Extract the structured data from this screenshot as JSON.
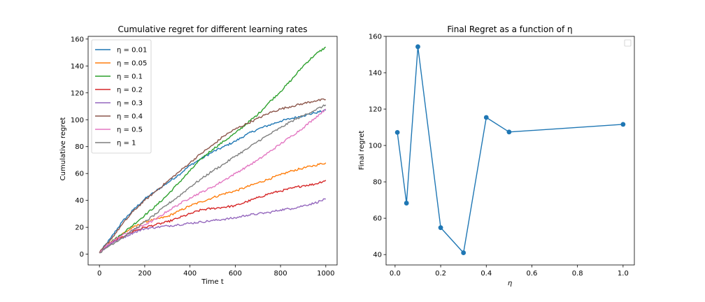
{
  "chart_data": [
    {
      "type": "line",
      "title": "Cumulative regret for different learning rates",
      "xlabel": "Time t",
      "ylabel": "Cumulative regret",
      "xlim": [
        -50,
        1050
      ],
      "ylim": [
        -8,
        162
      ],
      "xticks": [
        0,
        200,
        400,
        600,
        800,
        1000
      ],
      "yticks": [
        0,
        20,
        40,
        60,
        80,
        100,
        120,
        140,
        160
      ],
      "grid": false,
      "legend": "upper-left",
      "x": [
        0,
        50,
        100,
        150,
        200,
        250,
        300,
        350,
        400,
        450,
        500,
        550,
        600,
        650,
        700,
        750,
        800,
        850,
        900,
        950,
        1000
      ],
      "series": [
        {
          "name": "η = 0.01",
          "color": "#1f77b4",
          "values": [
            1,
            12,
            24,
            33,
            41,
            47,
            53,
            59,
            66,
            71,
            76,
            80,
            84,
            89,
            93,
            96,
            99,
            101,
            103,
            105,
            107
          ]
        },
        {
          "name": "η = 0.05",
          "color": "#ff7f0e",
          "values": [
            1,
            9,
            15,
            20,
            24,
            26,
            28,
            32,
            36,
            39,
            42,
            45,
            47,
            50,
            53,
            56,
            59,
            62,
            64,
            66,
            68
          ]
        },
        {
          "name": "η = 0.1",
          "color": "#2ca02c",
          "values": [
            1,
            9,
            15,
            22,
            29,
            36,
            44,
            53,
            62,
            71,
            78,
            84,
            90,
            97,
            104,
            113,
            121,
            130,
            140,
            148,
            154
          ]
        },
        {
          "name": "η = 0.2",
          "color": "#d62728",
          "values": [
            1,
            8,
            13,
            17,
            20,
            22,
            24,
            27,
            30,
            33,
            34,
            35,
            36,
            39,
            42,
            45,
            47,
            49,
            51,
            52,
            55
          ]
        },
        {
          "name": "η = 0.3",
          "color": "#9467bd",
          "values": [
            1,
            8,
            12,
            16,
            19,
            20,
            21,
            22,
            23,
            24,
            25,
            26,
            27,
            29,
            30,
            31,
            33,
            34,
            36,
            38,
            41
          ]
        },
        {
          "name": "η = 0.4",
          "color": "#8c564b",
          "values": [
            1,
            11,
            22,
            32,
            40,
            47,
            54,
            61,
            68,
            75,
            81,
            88,
            93,
            97,
            101,
            105,
            108,
            110,
            112,
            114,
            115
          ]
        },
        {
          "name": "η = 0.5",
          "color": "#e377c2",
          "values": [
            1,
            9,
            14,
            18,
            22,
            26,
            32,
            37,
            42,
            46,
            50,
            55,
            60,
            65,
            70,
            76,
            82,
            88,
            94,
            101,
            108
          ]
        },
        {
          "name": "η = 1",
          "color": "#7f7f7f",
          "values": [
            1,
            7,
            12,
            18,
            24,
            30,
            37,
            43,
            50,
            56,
            62,
            67,
            73,
            78,
            84,
            89,
            94,
            99,
            103,
            107,
            111
          ]
        }
      ]
    },
    {
      "type": "line",
      "title": "Final Regret as a function of η",
      "xlabel": "η",
      "ylabel": "Final regret",
      "xlim": [
        -0.0395,
        1.0495
      ],
      "ylim": [
        34.3,
        160
      ],
      "xticks": [
        0.0,
        0.2,
        0.4,
        0.6,
        0.8,
        1.0
      ],
      "xtick_labels": [
        "0.0",
        "0.2",
        "0.4",
        "0.6",
        "0.8",
        "1.0"
      ],
      "yticks": [
        40,
        60,
        80,
        100,
        120,
        140,
        160
      ],
      "grid": false,
      "legend": "upper-right",
      "markers": true,
      "series": [
        {
          "color": "#1f77b4",
          "x": [
            0.01,
            0.05,
            0.1,
            0.2,
            0.3,
            0.4,
            0.5,
            1.0
          ],
          "values": [
            107.2,
            68.3,
            154.3,
            54.8,
            41.0,
            115.4,
            107.4,
            111.6
          ]
        }
      ]
    }
  ]
}
